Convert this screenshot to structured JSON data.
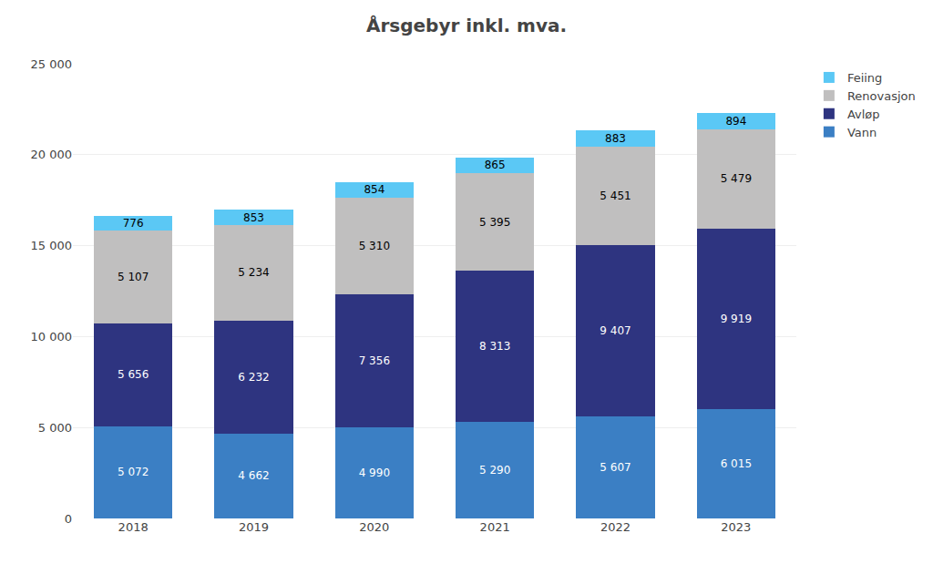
{
  "chart_data": {
    "type": "bar",
    "title": "Årsgebyr inkl. mva.",
    "categories": [
      "2018",
      "2019",
      "2020",
      "2021",
      "2022",
      "2023"
    ],
    "series": [
      {
        "name": "Vann",
        "color": "#3b7fc4",
        "values": [
          5072,
          4662,
          4990,
          5290,
          5607,
          6015
        ],
        "value_labels": [
          "5 072",
          "4 662",
          "4 990",
          "5 290",
          "5 607",
          "6 015"
        ]
      },
      {
        "name": "Avløp",
        "color": "#2e3480",
        "values": [
          5656,
          6232,
          7356,
          8313,
          9407,
          9919
        ],
        "value_labels": [
          "5 656",
          "6 232",
          "7 356",
          "8 313",
          "9 407",
          "9 919"
        ]
      },
      {
        "name": "Renovasjon",
        "color": "#c0bfbf",
        "values": [
          5107,
          5234,
          5310,
          5395,
          5451,
          5479
        ],
        "value_labels": [
          "5 107",
          "5 234",
          "5 310",
          "5 395",
          "5 451",
          "5 479"
        ]
      },
      {
        "name": "Feiing",
        "color": "#5bc8f5",
        "values": [
          776,
          853,
          854,
          865,
          883,
          894
        ],
        "value_labels": [
          "776",
          "853",
          "854",
          "865",
          "883",
          "894"
        ]
      }
    ],
    "stacked": true,
    "data_labels": true,
    "ylim": [
      0,
      25000
    ],
    "yticks": [
      0,
      {
        "value": 5000,
        "label": "5 000"
      },
      {
        "value": 10000,
        "label": "10 000"
      },
      {
        "value": 15000,
        "label": "15 000"
      },
      {
        "value": 20000,
        "label": "20 000"
      },
      {
        "value": 25000,
        "label": "25 000"
      }
    ],
    "grid": true,
    "legend": "right"
  }
}
